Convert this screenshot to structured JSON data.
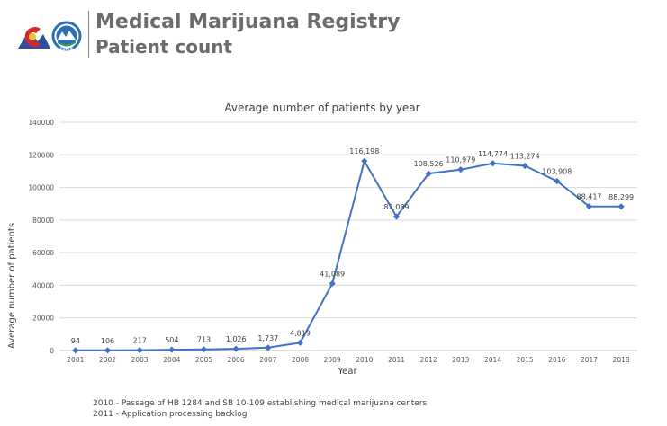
{
  "header": {
    "title": "Medical Marijuana Registry",
    "subtitle": "Patient count"
  },
  "logos": {
    "logo1": "colorado-logo-icon",
    "logo2": "cdphe-logo-icon",
    "logo2_text": "COPHE"
  },
  "colors": {
    "series": "#4472c4",
    "title_text": "#6c6c6c",
    "grid": "#d9d9d9",
    "axis_text": "#595959",
    "co_red": "#d02a2a",
    "co_yellow": "#f2c12e",
    "co_blue": "#1d3f8f",
    "cdphe_blue": "#2c6fb5",
    "cdphe_green": "#3a9a47"
  },
  "chart_data": {
    "type": "line",
    "title": "Average number of patients by year",
    "xlabel": "Year",
    "ylabel": "Average number of patients",
    "categories": [
      "2001",
      "2002",
      "2003",
      "2004",
      "2005",
      "2006",
      "2007",
      "2008",
      "2009",
      "2010",
      "2011",
      "2012",
      "2013",
      "2014",
      "2015",
      "2016",
      "2017",
      "2018"
    ],
    "values": [
      94,
      106,
      217,
      504,
      713,
      1026,
      1737,
      4819,
      41089,
      116198,
      82089,
      108526,
      110979,
      114774,
      113274,
      103908,
      88417,
      88299
    ],
    "data_labels": [
      "94",
      "106",
      "217",
      "504",
      "713",
      "1,026",
      "1,737",
      "4,819",
      "41,089",
      "116,198",
      "82,089",
      "108,526",
      "110,979",
      "114,774",
      "113,274",
      "103,908",
      "88,417",
      "88,299"
    ],
    "ylim": [
      0,
      140000
    ],
    "yticks": [
      0,
      20000,
      40000,
      60000,
      80000,
      100000,
      120000,
      140000
    ],
    "ytick_labels": [
      "0",
      "20000",
      "40000",
      "60000",
      "80000",
      "100000",
      "120000",
      "140000"
    ],
    "grid": true,
    "legend": "none",
    "marker": "diamond"
  },
  "notes": [
    "2010 - Passage of HB 1284 and SB 10-109 establishing medical marijuana centers",
    "2011 - Application processing backlog"
  ]
}
